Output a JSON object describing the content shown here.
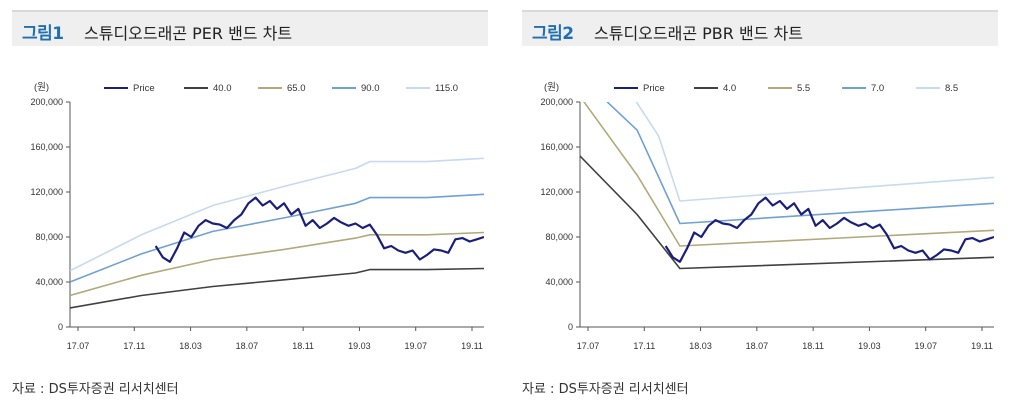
{
  "source_note": "자료 : DS투자증권 리서치센터",
  "chart_data": [
    {
      "type": "line",
      "figure_label": "그림1",
      "title": "스튜디오드래곤 PER 밴드 차트",
      "unit": "(원)",
      "ylim": [
        0,
        200000
      ],
      "yticks": [
        "0",
        "40,000",
        "80,000",
        "120,000",
        "160,000",
        "200,000"
      ],
      "ytick_values": [
        0,
        40000,
        80000,
        120000,
        160000,
        200000
      ],
      "xticks": [
        "17.07",
        "17.11",
        "18.03",
        "18.07",
        "18.11",
        "19.03",
        "19.07",
        "19.11"
      ],
      "x_range": [
        0,
        29
      ],
      "legend_position": "top",
      "grid": false,
      "series": [
        {
          "name": "Price",
          "color": "#1b1f7a",
          "x": [
            6,
            6.5,
            7,
            7.5,
            8,
            8.5,
            9,
            9.5,
            10,
            10.5,
            11,
            11.5,
            12,
            12.5,
            13,
            13.5,
            14,
            14.5,
            15,
            15.5,
            16,
            16.5,
            17,
            17.5,
            18,
            18.5,
            19,
            19.5,
            20,
            20.5,
            21,
            21.5,
            22,
            22.5,
            23,
            23.5,
            24,
            24.5,
            25,
            25.5,
            26,
            26.5,
            27,
            27.5,
            28,
            28.5,
            29
          ],
          "values": [
            72000,
            62000,
            58000,
            70000,
            84000,
            80000,
            90000,
            95000,
            92000,
            91000,
            88000,
            95000,
            100000,
            110000,
            115000,
            108000,
            112000,
            105000,
            110000,
            100000,
            105000,
            90000,
            95000,
            88000,
            92000,
            97000,
            93000,
            90000,
            92000,
            88000,
            91000,
            82000,
            70000,
            72000,
            68000,
            66000,
            68000,
            60000,
            64000,
            69000,
            68000,
            66000,
            78000,
            79000,
            76000,
            78000,
            80000
          ]
        },
        {
          "name": "40.0",
          "color": "#404040",
          "x": [
            0,
            5,
            10,
            15,
            20,
            21,
            25,
            29
          ],
          "values": [
            17000,
            28000,
            36000,
            42000,
            48000,
            51000,
            51000,
            52000
          ]
        },
        {
          "name": "65.0",
          "color": "#b3a97b",
          "x": [
            0,
            5,
            10,
            15,
            20,
            21,
            25,
            29
          ],
          "values": [
            28000,
            46000,
            60000,
            69000,
            79000,
            82000,
            82000,
            84000
          ]
        },
        {
          "name": "90.0",
          "color": "#6fa1d2",
          "x": [
            0,
            5,
            10,
            15,
            20,
            21,
            25,
            29
          ],
          "values": [
            40000,
            65000,
            85000,
            97000,
            110000,
            115000,
            115000,
            118000
          ]
        },
        {
          "name": "115.0",
          "color": "#c7daee",
          "x": [
            0,
            5,
            10,
            15,
            20,
            21,
            25,
            29
          ],
          "values": [
            50000,
            82000,
            108000,
            125000,
            141000,
            147000,
            147000,
            150000
          ]
        }
      ]
    },
    {
      "type": "line",
      "figure_label": "그림2",
      "title": "스튜디오드래곤 PBR 밴드 차트",
      "unit": "(원)",
      "ylim": [
        0,
        200000
      ],
      "yticks": [
        "0",
        "40,000",
        "80,000",
        "120,000",
        "160,000",
        "200,000"
      ],
      "ytick_values": [
        0,
        40000,
        80000,
        120000,
        160000,
        200000
      ],
      "xticks": [
        "17.07",
        "17.11",
        "18.03",
        "18.07",
        "18.11",
        "19.03",
        "19.07",
        "19.11"
      ],
      "x_range": [
        0,
        29
      ],
      "legend_position": "top",
      "grid": false,
      "series": [
        {
          "name": "Price",
          "color": "#1b1f7a",
          "x": [
            6,
            6.5,
            7,
            7.5,
            8,
            8.5,
            9,
            9.5,
            10,
            10.5,
            11,
            11.5,
            12,
            12.5,
            13,
            13.5,
            14,
            14.5,
            15,
            15.5,
            16,
            16.5,
            17,
            17.5,
            18,
            18.5,
            19,
            19.5,
            20,
            20.5,
            21,
            21.5,
            22,
            22.5,
            23,
            23.5,
            24,
            24.5,
            25,
            25.5,
            26,
            26.5,
            27,
            27.5,
            28,
            28.5,
            29
          ],
          "values": [
            72000,
            62000,
            58000,
            70000,
            84000,
            80000,
            90000,
            95000,
            92000,
            91000,
            88000,
            95000,
            100000,
            110000,
            115000,
            108000,
            112000,
            105000,
            110000,
            100000,
            105000,
            90000,
            95000,
            88000,
            92000,
            97000,
            93000,
            90000,
            92000,
            88000,
            91000,
            82000,
            70000,
            72000,
            68000,
            66000,
            68000,
            60000,
            64000,
            69000,
            68000,
            66000,
            78000,
            79000,
            76000,
            78000,
            80000
          ]
        },
        {
          "name": "4.0",
          "color": "#404040",
          "x": [
            0,
            4,
            7,
            29
          ],
          "values": [
            152000,
            100000,
            52000,
            62000
          ]
        },
        {
          "name": "5.5",
          "color": "#b3a97b",
          "x": [
            0,
            4,
            7,
            29
          ],
          "values": [
            205000,
            135000,
            72000,
            86000
          ]
        },
        {
          "name": "7.0",
          "color": "#6fa1d2",
          "x": [
            1.5,
            4,
            7,
            29
          ],
          "values": [
            205000,
            175000,
            92000,
            110000
          ]
        },
        {
          "name": "8.5",
          "color": "#c7daee",
          "x": [
            3.7,
            5.5,
            7,
            29
          ],
          "values": [
            205000,
            170000,
            112000,
            133000
          ]
        }
      ]
    }
  ]
}
